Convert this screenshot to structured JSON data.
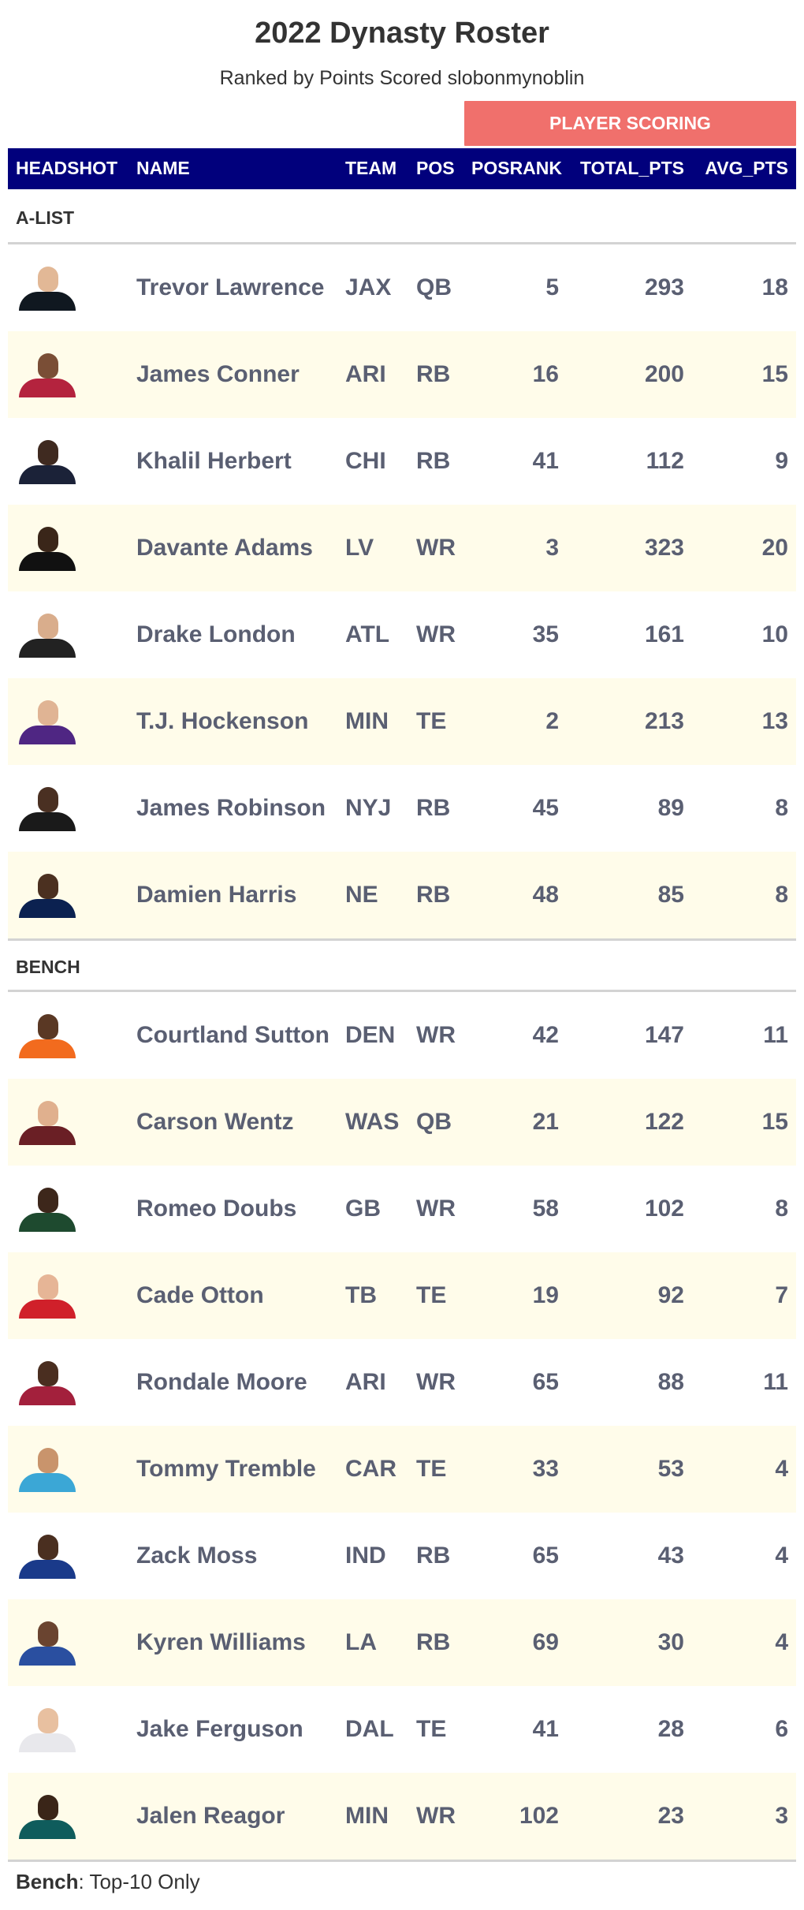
{
  "title": "2022 Dynasty Roster",
  "subtitle": "Ranked by Points Scored slobonmynoblin",
  "spanner": "PLAYER SCORING",
  "columns": {
    "headshot": "HEADSHOT",
    "name": "NAME",
    "team": "TEAM",
    "pos": "POS",
    "posrank": "POSRANK",
    "total_pts": "TOTAL_PTS",
    "avg_pts": "AVG_PTS"
  },
  "groups": [
    {
      "label": "A-LIST",
      "rows": [
        {
          "name": "Trevor Lawrence",
          "team": "JAX",
          "pos": "QB",
          "posrank": "5",
          "total_pts": "293",
          "avg_pts": "18",
          "skin": "#e2b896",
          "jersey": "#101820"
        },
        {
          "name": "James Conner",
          "team": "ARI",
          "pos": "RB",
          "posrank": "16",
          "total_pts": "200",
          "avg_pts": "15",
          "skin": "#7a4e36",
          "jersey": "#b4233e"
        },
        {
          "name": "Khalil Herbert",
          "team": "CHI",
          "pos": "RB",
          "posrank": "41",
          "total_pts": "112",
          "avg_pts": "9",
          "skin": "#3f2a20",
          "jersey": "#1b2238"
        },
        {
          "name": "Davante Adams",
          "team": "LV",
          "pos": "WR",
          "posrank": "3",
          "total_pts": "323",
          "avg_pts": "20",
          "skin": "#3a2619",
          "jersey": "#111111"
        },
        {
          "name": "Drake London",
          "team": "ATL",
          "pos": "WR",
          "posrank": "35",
          "total_pts": "161",
          "avg_pts": "10",
          "skin": "#d9ad8c",
          "jersey": "#222222"
        },
        {
          "name": "T.J. Hockenson",
          "team": "MIN",
          "pos": "TE",
          "posrank": "2",
          "total_pts": "213",
          "avg_pts": "13",
          "skin": "#e0b494",
          "jersey": "#4f2683"
        },
        {
          "name": "James Robinson",
          "team": "NYJ",
          "pos": "RB",
          "posrank": "45",
          "total_pts": "89",
          "avg_pts": "8",
          "skin": "#4a3022",
          "jersey": "#1a1a1a"
        },
        {
          "name": "Damien Harris",
          "team": "NE",
          "pos": "RB",
          "posrank": "48",
          "total_pts": "85",
          "avg_pts": "8",
          "skin": "#4b3020",
          "jersey": "#0b2150"
        }
      ]
    },
    {
      "label": "BENCH",
      "rows": [
        {
          "name": "Courtland Sutton",
          "team": "DEN",
          "pos": "WR",
          "posrank": "42",
          "total_pts": "147",
          "avg_pts": "11",
          "skin": "#5a3824",
          "jersey": "#f26b1e"
        },
        {
          "name": "Carson Wentz",
          "team": "WAS",
          "pos": "QB",
          "posrank": "21",
          "total_pts": "122",
          "avg_pts": "15",
          "skin": "#e0b08e",
          "jersey": "#6a1f25"
        },
        {
          "name": "Romeo Doubs",
          "team": "GB",
          "pos": "WR",
          "posrank": "58",
          "total_pts": "102",
          "avg_pts": "8",
          "skin": "#3d271b",
          "jersey": "#1e4a2f"
        },
        {
          "name": "Cade Otton",
          "team": "TB",
          "pos": "TE",
          "posrank": "19",
          "total_pts": "92",
          "avg_pts": "7",
          "skin": "#e6b596",
          "jersey": "#d0202a"
        },
        {
          "name": "Rondale Moore",
          "team": "ARI",
          "pos": "WR",
          "posrank": "65",
          "total_pts": "88",
          "avg_pts": "11",
          "skin": "#4a2e20",
          "jersey": "#a3203c"
        },
        {
          "name": "Tommy Tremble",
          "team": "CAR",
          "pos": "TE",
          "posrank": "33",
          "total_pts": "53",
          "avg_pts": "4",
          "skin": "#c9946c",
          "jersey": "#3ba7d6"
        },
        {
          "name": "Zack Moss",
          "team": "IND",
          "pos": "RB",
          "posrank": "65",
          "total_pts": "43",
          "avg_pts": "4",
          "skin": "#4a2f20",
          "jersey": "#1a3a8a"
        },
        {
          "name": "Kyren Williams",
          "team": "LA",
          "pos": "RB",
          "posrank": "69",
          "total_pts": "30",
          "avg_pts": "4",
          "skin": "#6a4430",
          "jersey": "#2a4fa0"
        },
        {
          "name": "Jake Ferguson",
          "team": "DAL",
          "pos": "TE",
          "posrank": "41",
          "total_pts": "28",
          "avg_pts": "6",
          "skin": "#e8c0a0",
          "jersey": "#e8e8ec"
        },
        {
          "name": "Jalen Reagor",
          "team": "MIN",
          "pos": "WR",
          "posrank": "102",
          "total_pts": "23",
          "avg_pts": "3",
          "skin": "#3a2518",
          "jersey": "#0f5c5c"
        }
      ]
    }
  ],
  "footer": {
    "bold": "Bench",
    "rest": ": Top-10 Only"
  }
}
